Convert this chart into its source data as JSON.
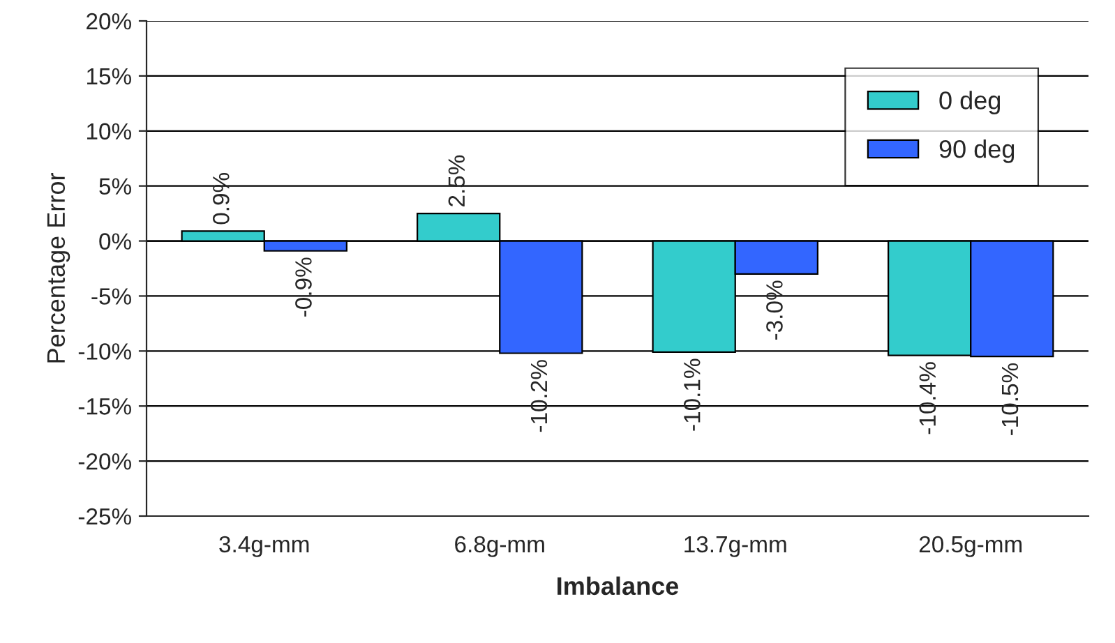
{
  "chart_data": {
    "type": "bar",
    "xlabel": "Imbalance",
    "ylabel": "Percentage Error",
    "categories": [
      "3.4g-mm",
      "6.8g-mm",
      "13.7g-mm",
      "20.5g-mm"
    ],
    "series": [
      {
        "name": "0 deg",
        "color": "#33cccc",
        "values": [
          0.9,
          2.5,
          -10.1,
          -10.4
        ],
        "value_labels": [
          "0.9%",
          "2.5%",
          "-10.1%",
          "-10.4%"
        ]
      },
      {
        "name": "90 deg",
        "color": "#3366ff",
        "values": [
          -0.9,
          -10.2,
          -3.0,
          -10.5
        ],
        "value_labels": [
          "-0.9%",
          "-10.2%",
          "-3.0%",
          "-10.5%"
        ]
      }
    ],
    "ylim": [
      -25,
      20
    ],
    "yticks": [
      {
        "value": -25,
        "label": "-25%"
      },
      {
        "value": -20,
        "label": "-20%"
      },
      {
        "value": -15,
        "label": "-15%"
      },
      {
        "value": -10,
        "label": "-10%"
      },
      {
        "value": -5,
        "label": "-5%"
      },
      {
        "value": 0,
        "label": "0%"
      },
      {
        "value": 5,
        "label": "5%"
      },
      {
        "value": 10,
        "label": "10%"
      },
      {
        "value": 15,
        "label": "15%"
      },
      {
        "value": 20,
        "label": "20%"
      }
    ],
    "grid": "y",
    "legend": "top right"
  }
}
